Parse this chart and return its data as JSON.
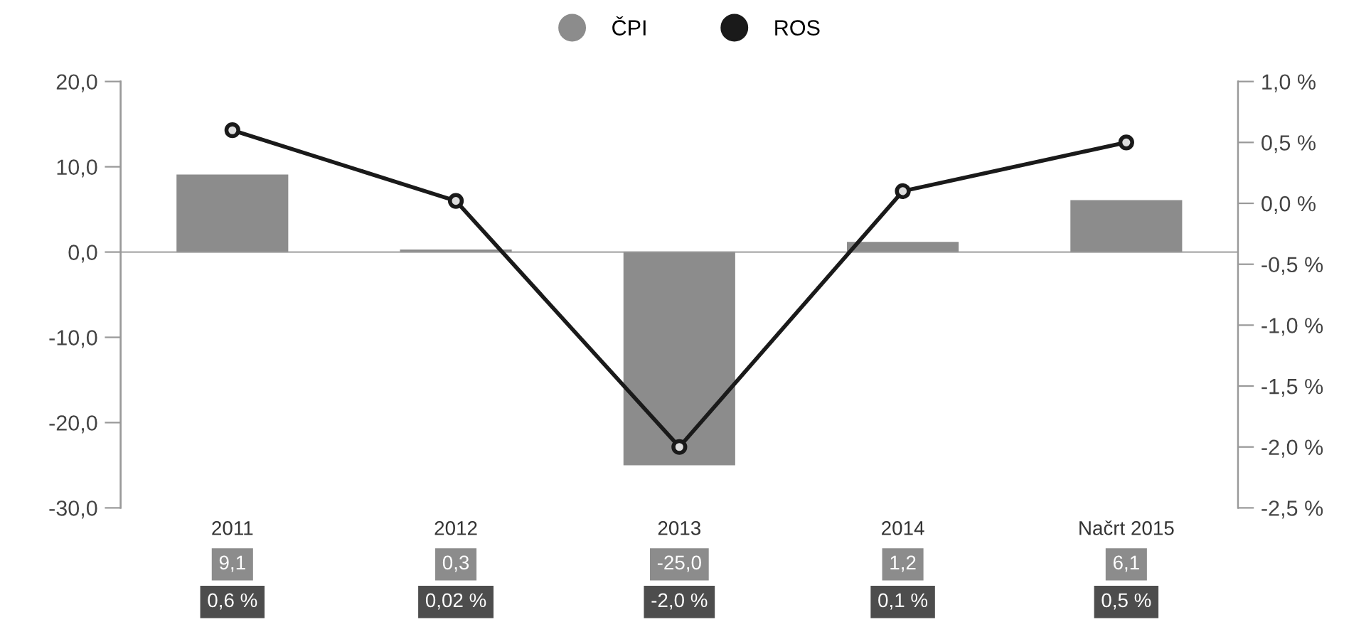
{
  "chart_data": {
    "type": "bar",
    "categories": [
      "2011",
      "2012",
      "2013",
      "2014",
      "Načrt 2015"
    ],
    "series": [
      {
        "name": "ČPI",
        "color": "#8c8c8c",
        "values": [
          9.1,
          0.3,
          -25.0,
          1.2,
          6.1
        ],
        "value_labels": [
          "9,1",
          "0,3",
          "-25,0",
          "1,2",
          "6,1"
        ]
      },
      {
        "name": "ROS",
        "type": "line",
        "axis": "y2",
        "color": "#1a1a1a",
        "values": [
          0.6,
          0.02,
          -2.0,
          0.1,
          0.5
        ],
        "value_labels": [
          "0,6 %",
          "0,02 %",
          "-2,0 %",
          "0,1 %",
          "0,5 %"
        ]
      }
    ],
    "ylim": [
      -30,
      20
    ],
    "yticks": [
      {
        "value": 20,
        "label": "20,0"
      },
      {
        "value": 10,
        "label": "10,0"
      },
      {
        "value": 0,
        "label": "0,0"
      },
      {
        "value": -10,
        "label": "-10,0"
      },
      {
        "value": -20,
        "label": "-20,0"
      },
      {
        "value": -30,
        "label": "-30,0"
      }
    ],
    "y2lim": [
      -2.5,
      1.0
    ],
    "y2ticks": [
      {
        "value": 1.0,
        "label": "1,0 %"
      },
      {
        "value": 0.5,
        "label": "0,5 %"
      },
      {
        "value": 0.0,
        "label": "0,0 %"
      },
      {
        "value": -0.5,
        "label": "-0,5 %"
      },
      {
        "value": -1.0,
        "label": "-1,0 %"
      },
      {
        "value": -1.5,
        "label": "-1,5 %"
      },
      {
        "value": -2.0,
        "label": "-2,0 %"
      },
      {
        "value": -2.5,
        "label": "-2,5 %"
      }
    ],
    "ref_lines": [
      {
        "axis": "y",
        "value": 0,
        "color": "#bbbbbb"
      }
    ],
    "marker": "circle",
    "line_style": "solid",
    "grid": false,
    "legend": "top"
  }
}
